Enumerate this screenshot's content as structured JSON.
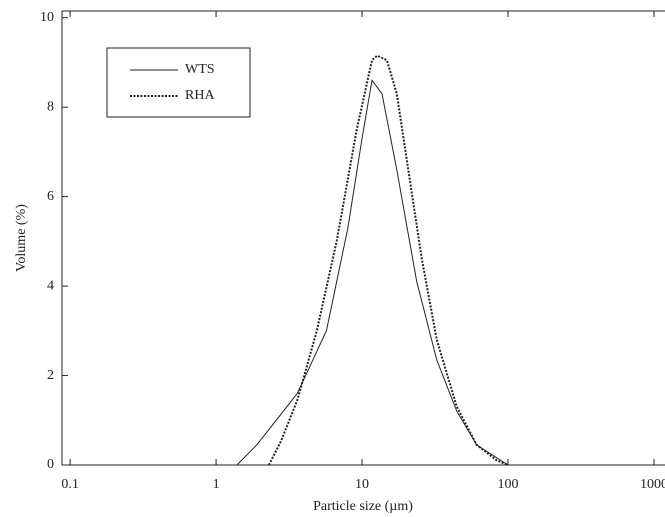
{
  "chart_data": {
    "type": "line",
    "x_label": "Particle size (µm)",
    "y_label": "Volume (%)",
    "xlim": [
      0.088,
      1190
    ],
    "ylim": [
      0,
      10.15
    ],
    "xscale": "log",
    "xticks": [
      0.1,
      1,
      10,
      100,
      1000
    ],
    "yticks": [
      0,
      2,
      4,
      6,
      8,
      10
    ],
    "legend": "upper left",
    "series": [
      {
        "name": "WTS",
        "color": "#222222",
        "style": "solid",
        "x": [
          1.39,
          1.9,
          3.6,
          5.7,
          8.0,
          10,
          11.7,
          13.7,
          17.3,
          23.7,
          32.5,
          44.6,
          61,
          100
        ],
        "values": [
          0,
          0.45,
          1.6,
          3.0,
          5.3,
          7.3,
          8.6,
          8.3,
          6.6,
          4.1,
          2.35,
          1.2,
          0.45,
          0
        ]
      },
      {
        "name": "RHA",
        "color": "#222222",
        "style": "dotted",
        "x": [
          2.3,
          2.8,
          3.6,
          4.9,
          6.7,
          9.2,
          11.7,
          12.7,
          14.8,
          17.3,
          20.3,
          25.7,
          32.5,
          44.6,
          61,
          84,
          100
        ],
        "values": [
          0,
          0.55,
          1.45,
          3.0,
          5.0,
          7.5,
          9.05,
          9.15,
          9.05,
          8.3,
          6.8,
          4.6,
          2.8,
          1.3,
          0.45,
          0.1,
          0
        ]
      }
    ]
  }
}
